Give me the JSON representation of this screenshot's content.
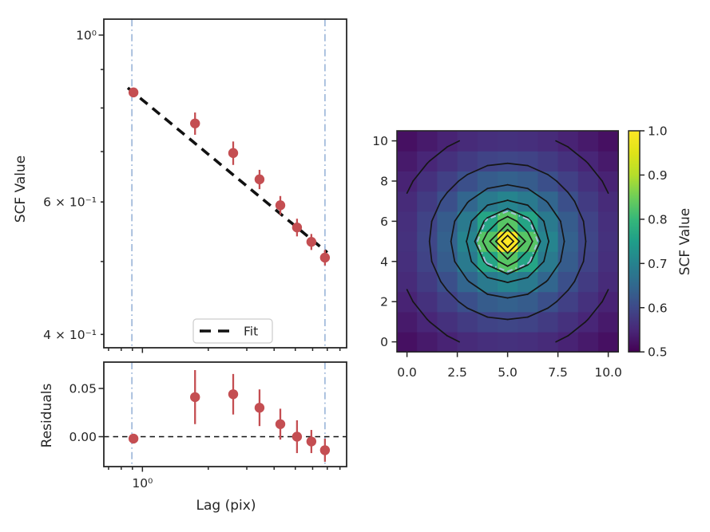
{
  "figure": {
    "background": "#ffffff"
  },
  "palette": {
    "marker_red": "#c44e52",
    "limit_blue": "#a7bedd",
    "fit_black": "#111111",
    "contour_black": "#161616",
    "spine": "#262626",
    "text": "#262626",
    "legend_border": "#cccccc",
    "viridis_stops": [
      "#440154",
      "#482878",
      "#3e4989",
      "#31688e",
      "#26828e",
      "#1f9e89",
      "#35b779",
      "#6ece58",
      "#b5de2b",
      "#dfe318",
      "#fde725"
    ]
  },
  "axes": {
    "main": {
      "ylabel": "SCF Value",
      "xscale": "log",
      "yscale": "log",
      "xlim": [
        0.666,
        8.58
      ],
      "ylim": [
        0.384,
        1.05
      ],
      "ytick_labels": [
        {
          "value": 1.0,
          "label": "10⁰",
          "major": true
        },
        {
          "value": 0.6,
          "label": "6 × 10⁻¹",
          "major": false
        },
        {
          "value": 0.4,
          "label": "4 × 10⁻¹",
          "major": false
        }
      ],
      "yticks_minor": [
        0.9,
        0.8,
        0.7,
        0.6,
        0.5,
        0.4
      ],
      "xticks_major": [
        1.0
      ],
      "xticks_minor": [
        0.7,
        0.8,
        0.9,
        2,
        3,
        4,
        5,
        6,
        7,
        8
      ],
      "legend": {
        "label": "Fit"
      }
    },
    "residuals": {
      "ylabel": "Residuals",
      "xlabel": "Lag (pix)",
      "ylim": [
        -0.031,
        0.0773
      ],
      "ytick_labels": [
        {
          "value": 0.05,
          "label": "0.05"
        },
        {
          "value": 0.0,
          "label": "0.00"
        }
      ],
      "xtick_labels": [
        {
          "value": 1.0,
          "label": "10⁰"
        }
      ]
    },
    "surface": {
      "xlim": [
        -0.5,
        10.5
      ],
      "ylim": [
        -0.5,
        10.5
      ],
      "xtick_labels": [
        {
          "value": 0.0,
          "label": "0.0"
        },
        {
          "value": 2.5,
          "label": "2.5"
        },
        {
          "value": 5.0,
          "label": "5.0"
        },
        {
          "value": 7.5,
          "label": "7.5"
        },
        {
          "value": 10.0,
          "label": "10.0"
        }
      ],
      "ytick_labels": [
        {
          "value": 0,
          "label": "0"
        },
        {
          "value": 2,
          "label": "2"
        },
        {
          "value": 4,
          "label": "4"
        },
        {
          "value": 6,
          "label": "6"
        },
        {
          "value": 8,
          "label": "8"
        },
        {
          "value": 10,
          "label": "10"
        }
      ]
    },
    "colorbar": {
      "label": "SCF Value",
      "vmin": 0.5,
      "vmax": 1.0,
      "tick_labels": [
        {
          "value": 0.5,
          "label": "0.5"
        },
        {
          "value": 0.6,
          "label": "0.6"
        },
        {
          "value": 0.7,
          "label": "0.7"
        },
        {
          "value": 0.8,
          "label": "0.8"
        },
        {
          "value": 0.9,
          "label": "0.9"
        },
        {
          "value": 1.0,
          "label": "1.0"
        }
      ]
    }
  },
  "chart_data": [
    {
      "id": "scf-spectrum",
      "type": "scatter",
      "xlabel": "Lag (pix)",
      "ylabel": "SCF Value",
      "xscale": "log",
      "yscale": "log",
      "x": [
        0.91,
        1.74,
        2.6,
        3.43,
        4.27,
        5.09,
        5.92,
        6.83
      ],
      "y": [
        0.839,
        0.763,
        0.697,
        0.643,
        0.594,
        0.555,
        0.531,
        0.506
      ],
      "yerr": [
        0.008,
        0.026,
        0.025,
        0.019,
        0.017,
        0.015,
        0.013,
        0.012
      ],
      "fit": {
        "label": "Fit",
        "type": "powerlaw",
        "amplitude": 0.82,
        "exponent": -0.24,
        "x_start": 0.857,
        "x_end": 7.0
      },
      "fit_limits": [
        0.895,
        6.83
      ]
    },
    {
      "id": "fit-residuals",
      "type": "scatter",
      "ylabel": "Residuals",
      "x": [
        0.91,
        1.74,
        2.6,
        3.43,
        4.27,
        5.09,
        5.92,
        6.83
      ],
      "y": [
        -0.002,
        0.041,
        0.044,
        0.03,
        0.013,
        0.0,
        -0.005,
        -0.014
      ],
      "yerr": [
        0.003,
        0.028,
        0.021,
        0.019,
        0.016,
        0.017,
        0.012,
        0.012
      ],
      "zero_line": 0.0,
      "fit_limits": [
        0.895,
        6.83
      ]
    },
    {
      "id": "scf-surface",
      "type": "heatmap",
      "colorbar_label": "SCF Value",
      "vmin": 0.5,
      "vmax": 1.0,
      "x_range": [
        0,
        10
      ],
      "y_range": [
        0,
        10
      ],
      "center": [
        5,
        5
      ],
      "row_order": "bottom_to_top",
      "values": [
        [
          0.519,
          0.532,
          0.544,
          0.554,
          0.561,
          0.564,
          0.561,
          0.554,
          0.544,
          0.532,
          0.519
        ],
        [
          0.532,
          0.548,
          0.564,
          0.579,
          0.591,
          0.595,
          0.591,
          0.579,
          0.564,
          0.548,
          0.532
        ],
        [
          0.544,
          0.564,
          0.587,
          0.61,
          0.63,
          0.638,
          0.63,
          0.61,
          0.587,
          0.564,
          0.544
        ],
        [
          0.554,
          0.579,
          0.61,
          0.647,
          0.684,
          0.703,
          0.684,
          0.647,
          0.61,
          0.579,
          0.554
        ],
        [
          0.561,
          0.591,
          0.63,
          0.684,
          0.764,
          0.83,
          0.764,
          0.684,
          0.63,
          0.591,
          0.561
        ],
        [
          0.564,
          0.595,
          0.638,
          0.703,
          0.83,
          1.0,
          0.83,
          0.703,
          0.638,
          0.595,
          0.564
        ],
        [
          0.561,
          0.591,
          0.63,
          0.684,
          0.764,
          0.83,
          0.764,
          0.684,
          0.63,
          0.591,
          0.561
        ],
        [
          0.554,
          0.579,
          0.61,
          0.647,
          0.684,
          0.703,
          0.684,
          0.647,
          0.61,
          0.579,
          0.554
        ],
        [
          0.544,
          0.564,
          0.587,
          0.61,
          0.63,
          0.638,
          0.63,
          0.61,
          0.587,
          0.564,
          0.544
        ],
        [
          0.532,
          0.548,
          0.564,
          0.579,
          0.591,
          0.595,
          0.591,
          0.579,
          0.564,
          0.548,
          0.532
        ],
        [
          0.519,
          0.532,
          0.544,
          0.554,
          0.561,
          0.564,
          0.561,
          0.554,
          0.544,
          0.532,
          0.519
        ]
      ],
      "contour_levels": [
        0.55,
        0.6,
        0.65,
        0.7,
        0.75,
        0.8,
        0.85,
        0.9,
        0.95
      ],
      "fit_limit_contour_radius": 1.5
    }
  ]
}
